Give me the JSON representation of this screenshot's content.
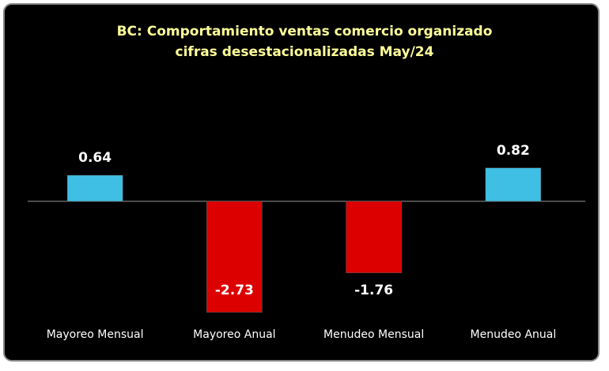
{
  "chart_data": {
    "type": "bar",
    "title": "BC: Comportamiento ventas comercio organizado",
    "subtitle": "cifras desestacionalizadas May/24",
    "categories": [
      "Mayoreo Mensual",
      "Mayoreo Anual",
      "Menudeo Mensual",
      "Menudeo Anual"
    ],
    "values": [
      0.64,
      -2.73,
      -1.76,
      0.82
    ],
    "colors": [
      "#3fbfe4",
      "#dd0000",
      "#dd0000",
      "#3fbfe4"
    ]
  }
}
